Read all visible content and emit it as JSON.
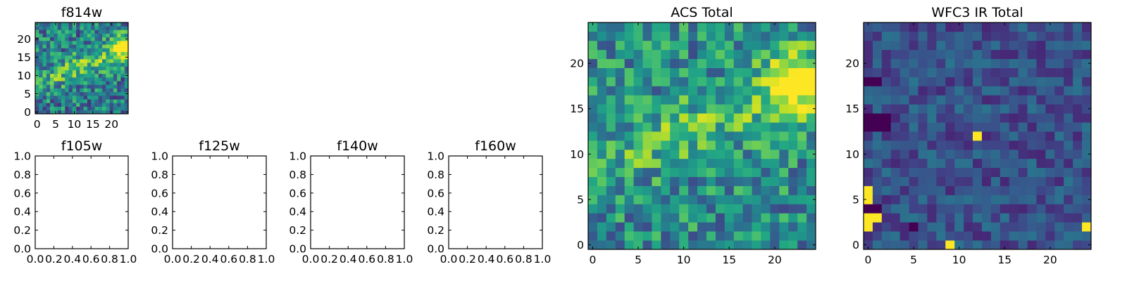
{
  "chart_data": [
    {
      "type": "heatmap",
      "title": "f814w",
      "colormap": "viridis",
      "grid_size": [
        25,
        25
      ],
      "xlim": [
        -0.5,
        24.5
      ],
      "ylim": [
        -0.5,
        24.5
      ],
      "xticks": [
        0,
        5,
        10,
        15,
        20
      ],
      "yticks": [
        0,
        5,
        10,
        15,
        20
      ],
      "xlabel": "",
      "ylabel": "",
      "grid": false,
      "features": [
        {
          "kind": "diagonal-ridge",
          "from": [
            3,
            9
          ],
          "to": [
            24,
            18
          ],
          "width": 2.5,
          "amplitude": 0.4
        },
        {
          "kind": "peak",
          "x": 23,
          "y": 18,
          "radius": 1.6,
          "amplitude": 0.45
        }
      ],
      "background_level": 0.42,
      "noise_level": 0.28,
      "seed": 11
    },
    {
      "type": "heatmap",
      "title": "f105w",
      "empty": true,
      "xlim": [
        0.0,
        1.0
      ],
      "ylim": [
        0.0,
        1.0
      ],
      "xticks": [
        0.0,
        0.2,
        0.4,
        0.6,
        0.8,
        1.0
      ],
      "yticks": [
        0.0,
        0.2,
        0.4,
        0.6,
        0.8,
        1.0
      ],
      "xlabel": "",
      "ylabel": "",
      "grid": false
    },
    {
      "type": "heatmap",
      "title": "f125w",
      "empty": true,
      "xlim": [
        0.0,
        1.0
      ],
      "ylim": [
        0.0,
        1.0
      ],
      "xticks": [
        0.0,
        0.2,
        0.4,
        0.6,
        0.8,
        1.0
      ],
      "yticks": [
        0.0,
        0.2,
        0.4,
        0.6,
        0.8,
        1.0
      ],
      "xlabel": "",
      "ylabel": "",
      "grid": false
    },
    {
      "type": "heatmap",
      "title": "f140w",
      "empty": true,
      "xlim": [
        0.0,
        1.0
      ],
      "ylim": [
        0.0,
        1.0
      ],
      "xticks": [
        0.0,
        0.2,
        0.4,
        0.6,
        0.8,
        1.0
      ],
      "yticks": [
        0.0,
        0.2,
        0.4,
        0.6,
        0.8,
        1.0
      ],
      "xlabel": "",
      "ylabel": "",
      "grid": false
    },
    {
      "type": "heatmap",
      "title": "f160w",
      "empty": true,
      "xlim": [
        0.0,
        1.0
      ],
      "ylim": [
        0.0,
        1.0
      ],
      "xticks": [
        0.0,
        0.2,
        0.4,
        0.6,
        0.8,
        1.0
      ],
      "yticks": [
        0.0,
        0.2,
        0.4,
        0.6,
        0.8,
        1.0
      ],
      "xlabel": "",
      "ylabel": "",
      "grid": false
    },
    {
      "type": "heatmap",
      "title": "ACS Total",
      "colormap": "viridis",
      "grid_size": [
        25,
        25
      ],
      "xlim": [
        -0.5,
        24.5
      ],
      "ylim": [
        -0.5,
        24.5
      ],
      "xticks": [
        0,
        5,
        10,
        15,
        20
      ],
      "yticks": [
        0,
        5,
        10,
        15,
        20
      ],
      "xlabel": "",
      "ylabel": "",
      "grid": false,
      "features": [
        {
          "kind": "diagonal-ridge",
          "from": [
            3,
            10
          ],
          "to": [
            24,
            18
          ],
          "width": 2.5,
          "amplitude": 0.3
        },
        {
          "kind": "peak",
          "x": 22,
          "y": 18,
          "radius": 2.2,
          "amplitude": 0.4
        }
      ],
      "background_level": 0.48,
      "noise_level": 0.26,
      "seed": 11
    },
    {
      "type": "heatmap",
      "title": "WFC3 IR Total",
      "colormap": "viridis",
      "grid_size": [
        25,
        25
      ],
      "xlim": [
        -0.5,
        24.5
      ],
      "ylim": [
        -0.5,
        24.5
      ],
      "xticks": [
        0,
        5,
        10,
        15,
        20
      ],
      "yticks": [
        0,
        5,
        10,
        15,
        20
      ],
      "xlabel": "",
      "ylabel": "",
      "grid": false,
      "background_level": 0.25,
      "noise_level": 0.14,
      "seed": 29,
      "bright_cells": [
        [
          0,
          2
        ],
        [
          0,
          3
        ],
        [
          1,
          3
        ],
        [
          0,
          5
        ],
        [
          0,
          6
        ],
        [
          12,
          12
        ],
        [
          24,
          2
        ],
        [
          9,
          0
        ]
      ],
      "dark_cells": [
        [
          0,
          13
        ],
        [
          0,
          14
        ],
        [
          1,
          14
        ],
        [
          2,
          14
        ],
        [
          1,
          13
        ],
        [
          2,
          13
        ],
        [
          0,
          18
        ],
        [
          1,
          18
        ],
        [
          5,
          2
        ],
        [
          0,
          4
        ],
        [
          1,
          4
        ]
      ]
    }
  ]
}
